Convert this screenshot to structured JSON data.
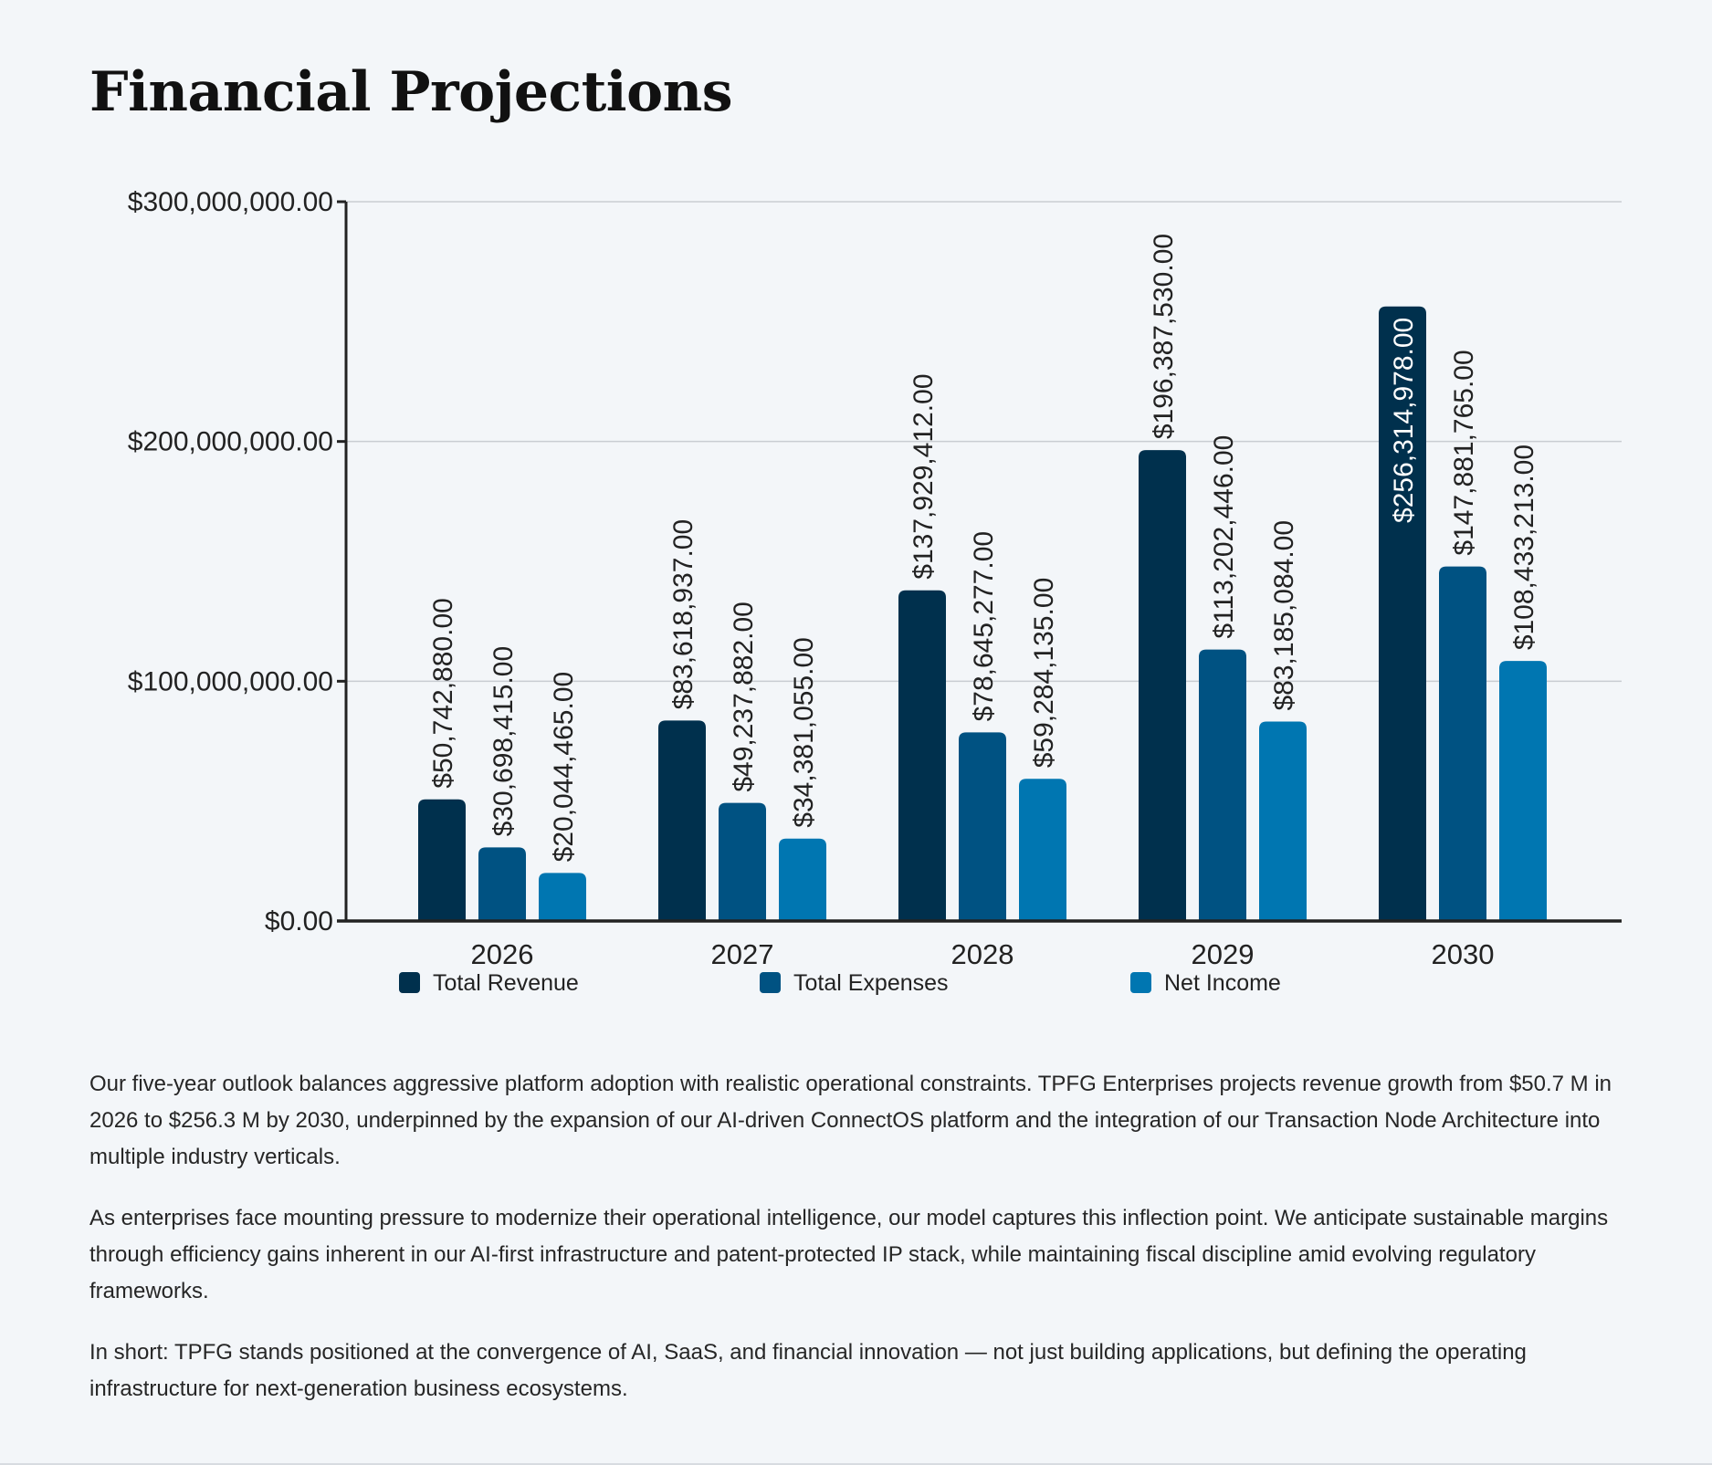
{
  "title": "Financial Projections",
  "chart_data": {
    "type": "bar",
    "title": "",
    "xlabel": "",
    "ylabel": "",
    "ylim": [
      0,
      300000000
    ],
    "yticks": [
      {
        "value": 0,
        "label": "$0.00"
      },
      {
        "value": 100000000,
        "label": "$100,000,000.00"
      },
      {
        "value": 200000000,
        "label": "$200,000,000.00"
      },
      {
        "value": 300000000,
        "label": "$300,000,000.00"
      }
    ],
    "grid": true,
    "legend_position": "bottom",
    "categories": [
      "2026",
      "2027",
      "2028",
      "2029",
      "2030"
    ],
    "series": [
      {
        "name": "Total Revenue",
        "color": "#00304d",
        "values": [
          50742880,
          83618937,
          137929412,
          196387530,
          256314978
        ],
        "labels": [
          "$50,742,880.00",
          "$83,618,937.00",
          "$137,929,412.00",
          "$196,387,530.00",
          "$256,314,978.00"
        ]
      },
      {
        "name": "Total Expenses",
        "color": "#005282",
        "values": [
          30698415,
          49237882,
          78645277,
          113202446,
          147881765
        ],
        "labels": [
          "$30,698,415.00",
          "$49,237,882.00",
          "$78,645,277.00",
          "$113,202,446.00",
          "$147,881,765.00"
        ]
      },
      {
        "name": "Net Income",
        "color": "#0076b1",
        "values": [
          20044465,
          34381055,
          59284135,
          83185084,
          108433213
        ],
        "labels": [
          "$20,044,465.00",
          "$34,381,055.00",
          "$59,284,135.00",
          "$83,185,084.00",
          "$108,433,213.00"
        ]
      }
    ]
  },
  "narrative": {
    "p1": "Our five-year outlook balances aggressive platform adoption with realistic operational constraints. TPFG Enterprises projects revenue growth from $50.7 M in 2026 to $256.3 M by 2030, underpinned by the expansion of our AI-driven ConnectOS platform and the integration of our Transaction Node Architecture into multiple industry verticals.",
    "p2": "As enterprises face mounting pressure to modernize their operational intelligence, our model captures this inflection point. We anticipate sustainable margins through efficiency gains inherent in our AI-first infrastructure and patent-protected IP stack, while maintaining fiscal discipline amid evolving regulatory frameworks.",
    "p3": "In short: TPFG stands positioned at the convergence of AI, SaaS, and financial innovation — not just building applications, but defining the operating infrastructure for next-generation business ecosystems."
  }
}
